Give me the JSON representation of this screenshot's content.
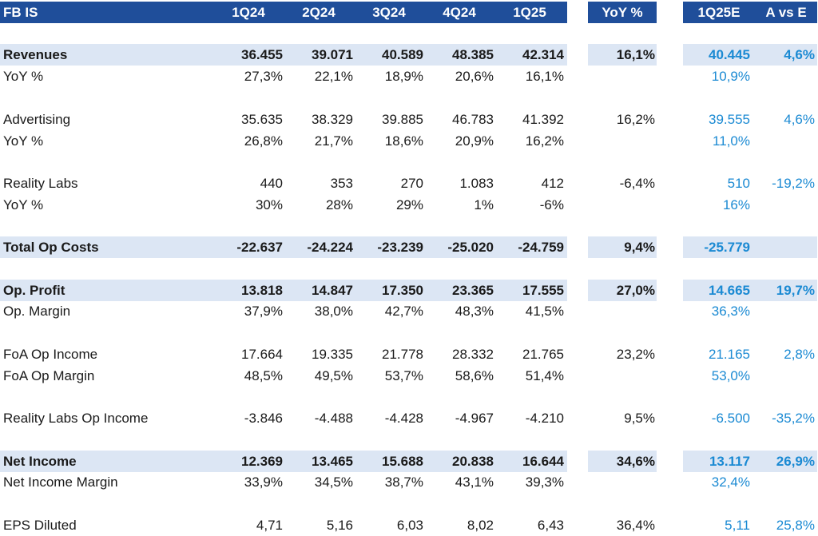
{
  "header": {
    "title": "FB IS",
    "quarters": [
      "1Q24",
      "2Q24",
      "3Q24",
      "4Q24",
      "1Q25"
    ],
    "yoy": "YoY %",
    "estimate": "1Q25E",
    "avse": "A vs E"
  },
  "rows": [
    {
      "label": "Revenues",
      "values": [
        "36.455",
        "39.071",
        "40.589",
        "48.385",
        "42.314"
      ],
      "yoy": "16,1%",
      "est": "40.445",
      "avse": "4,6%"
    },
    {
      "label": "YoY %",
      "values": [
        "27,3%",
        "22,1%",
        "18,9%",
        "20,6%",
        "16,1%"
      ],
      "yoy": "",
      "est": "10,9%",
      "avse": ""
    },
    {
      "label": "Advertising",
      "values": [
        "35.635",
        "38.329",
        "39.885",
        "46.783",
        "41.392"
      ],
      "yoy": "16,2%",
      "est": "39.555",
      "avse": "4,6%"
    },
    {
      "label": "YoY %",
      "values": [
        "26,8%",
        "21,7%",
        "18,6%",
        "20,9%",
        "16,2%"
      ],
      "yoy": "",
      "est": "11,0%",
      "avse": ""
    },
    {
      "label": "Reality Labs",
      "values": [
        "440",
        "353",
        "270",
        "1.083",
        "412"
      ],
      "yoy": "-6,4%",
      "est": "510",
      "avse": "-19,2%"
    },
    {
      "label": "YoY %",
      "values": [
        "30%",
        "28%",
        "29%",
        "1%",
        "-6%"
      ],
      "yoy": "",
      "est": "16%",
      "avse": ""
    },
    {
      "label": "Total Op Costs",
      "values": [
        "-22.637",
        "-24.224",
        "-23.239",
        "-25.020",
        "-24.759"
      ],
      "yoy": "9,4%",
      "est": "-25.779",
      "avse": ""
    },
    {
      "label": "Op. Profit",
      "values": [
        "13.818",
        "14.847",
        "17.350",
        "23.365",
        "17.555"
      ],
      "yoy": "27,0%",
      "est": "14.665",
      "avse": "19,7%"
    },
    {
      "label": "Op. Margin",
      "values": [
        "37,9%",
        "38,0%",
        "42,7%",
        "48,3%",
        "41,5%"
      ],
      "yoy": "",
      "est": "36,3%",
      "avse": ""
    },
    {
      "label": "FoA Op Income",
      "values": [
        "17.664",
        "19.335",
        "21.778",
        "28.332",
        "21.765"
      ],
      "yoy": "23,2%",
      "est": "21.165",
      "avse": "2,8%"
    },
    {
      "label": "FoA Op Margin",
      "values": [
        "48,5%",
        "49,5%",
        "53,7%",
        "58,6%",
        "51,4%"
      ],
      "yoy": "",
      "est": "53,0%",
      "avse": ""
    },
    {
      "label": "Reality Labs Op Income",
      "values": [
        "-3.846",
        "-4.488",
        "-4.428",
        "-4.967",
        "-4.210"
      ],
      "yoy": "9,5%",
      "est": "-6.500",
      "avse": "-35,2%"
    },
    {
      "label": "Net Income",
      "values": [
        "12.369",
        "13.465",
        "15.688",
        "20.838",
        "16.644"
      ],
      "yoy": "34,6%",
      "est": "13.117",
      "avse": "26,9%"
    },
    {
      "label": "Net Income Margin",
      "values": [
        "33,9%",
        "34,5%",
        "38,7%",
        "43,1%",
        "39,3%"
      ],
      "yoy": "",
      "est": "32,4%",
      "avse": ""
    },
    {
      "label": "EPS Diluted",
      "values": [
        "4,71",
        "5,16",
        "6,03",
        "8,02",
        "6,43"
      ],
      "yoy": "36,4%",
      "est": "5,11",
      "avse": "25,8%"
    }
  ]
}
